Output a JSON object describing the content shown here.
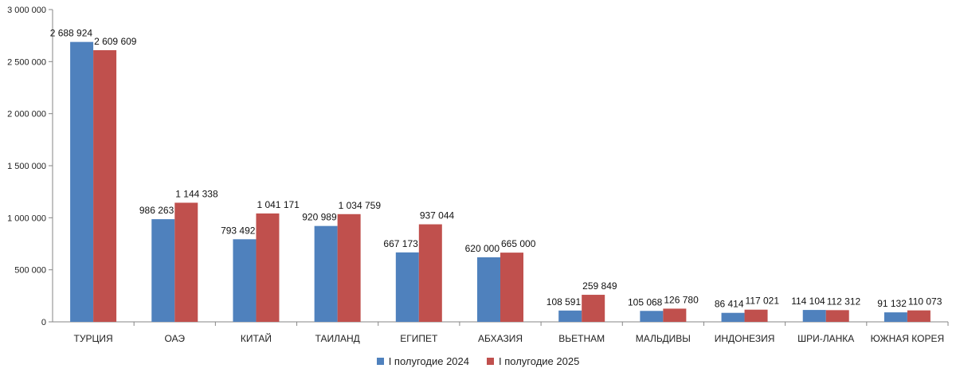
{
  "chart_data": {
    "type": "bar",
    "categories": [
      "ТУРЦИЯ",
      "ОАЭ",
      "КИТАЙ",
      "ТАИЛАНД",
      "ЕГИПЕТ",
      "АБХАЗИЯ",
      "ВЬЕТНАМ",
      "МАЛЬДИВЫ",
      "ИНДОНЕЗИЯ",
      "ШРИ-ЛАНКА",
      "ЮЖНАЯ КОРЕЯ"
    ],
    "series": [
      {
        "name": "I полугодие 2024",
        "color": "#4f81bd",
        "values": [
          2688924,
          986263,
          793492,
          920989,
          667173,
          620000,
          108591,
          105068,
          86414,
          114104,
          91132
        ],
        "labels": [
          "2 688 924",
          "986 263",
          "793 492",
          "920 989",
          "667 173",
          "620 000",
          "108 591",
          "105 068",
          "86 414",
          "114 104",
          "91 132"
        ]
      },
      {
        "name": "I полугодие 2025",
        "color": "#c0504d",
        "values": [
          2609609,
          1144338,
          1041171,
          1034759,
          937044,
          665000,
          259849,
          126780,
          117021,
          112312,
          110073
        ],
        "labels": [
          "2 609 609",
          "1 144 338",
          "1 041 171",
          "1 034 759",
          "937 044",
          "665 000",
          "259 849",
          "126 780",
          "117 021",
          "112 312",
          "110 073"
        ]
      }
    ],
    "ylim": [
      0,
      3000000
    ],
    "yticks": [
      0,
      500000,
      1000000,
      1500000,
      2000000,
      2500000,
      3000000
    ],
    "ytick_labels": [
      "0",
      "500 000",
      "1 000 000",
      "1 500 000",
      "2 000 000",
      "2 500 000",
      "3 000 000"
    ],
    "grid": false,
    "legend_position": "bottom"
  }
}
